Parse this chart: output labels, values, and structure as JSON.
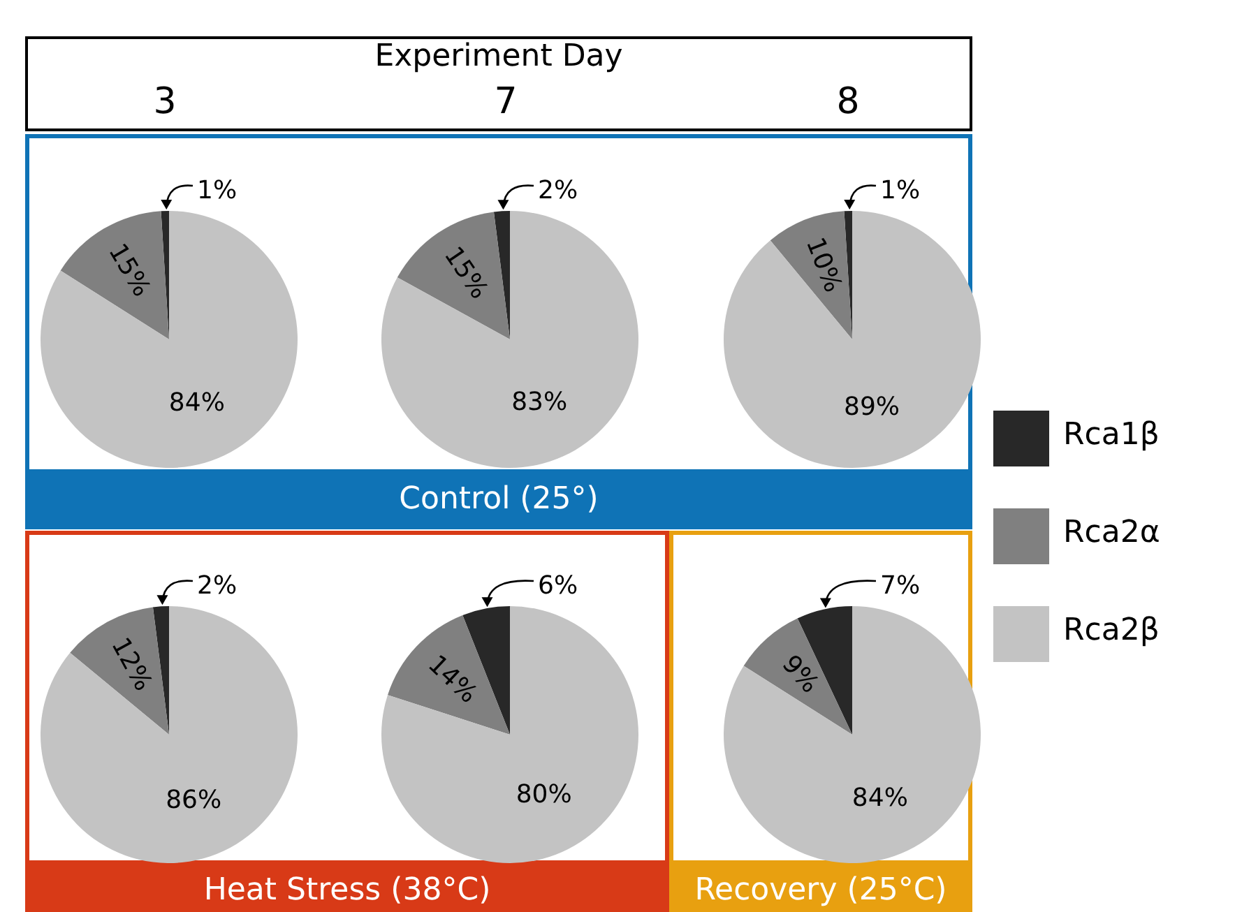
{
  "chart_data": [
    {
      "type": "pie",
      "categories": [
        "Rca1β",
        "Rca2α",
        "Rca2β"
      ],
      "values": [
        1,
        15,
        84
      ],
      "colors": [
        "#282828",
        "#808080",
        "#c3c3c3"
      ],
      "value_labels": [
        "1%",
        "15%",
        "84%"
      ],
      "legend": "right"
    },
    {
      "type": "pie",
      "categories": [
        null,
        null,
        null
      ],
      "values": [
        2,
        15,
        83
      ],
      "colors": [
        "#282828",
        "#808080",
        "#c3c3c3"
      ],
      "value_labels": [
        "2%",
        "15%",
        "83%"
      ]
    },
    {
      "type": "pie",
      "categories": [
        null,
        null,
        null
      ],
      "values": [
        1,
        10,
        89
      ],
      "colors": [
        "#282828",
        "#808080",
        "#c3c3c3"
      ],
      "value_labels": [
        "1%",
        "10%",
        "89%"
      ]
    },
    {
      "type": "pie",
      "categories": [
        null,
        null,
        null
      ],
      "values": [
        2,
        12,
        86
      ],
      "colors": [
        "#282828",
        "#808080",
        "#c3c3c3"
      ],
      "value_labels": [
        "2%",
        "12%",
        "86%"
      ]
    },
    {
      "type": "pie",
      "categories": [
        null,
        null,
        null
      ],
      "values": [
        6,
        14,
        80
      ],
      "colors": [
        "#282828",
        "#808080",
        "#c3c3c3"
      ],
      "value_labels": [
        "6%",
        "14%",
        "80%"
      ]
    },
    {
      "type": "pie",
      "categories": [
        null,
        null,
        null
      ],
      "values": [
        7,
        9,
        84
      ],
      "colors": [
        "#282828",
        "#808080",
        "#c3c3c3"
      ],
      "value_labels": [
        "7%",
        "9%",
        "84%"
      ]
    },
    {
      "type": "other",
      "title": "Experiment Day",
      "annotations": [
        "3",
        "7",
        "8",
        "Control (25°)",
        "Heat Stress (38°C)",
        "Recovery (25°C)"
      ]
    }
  ]
}
